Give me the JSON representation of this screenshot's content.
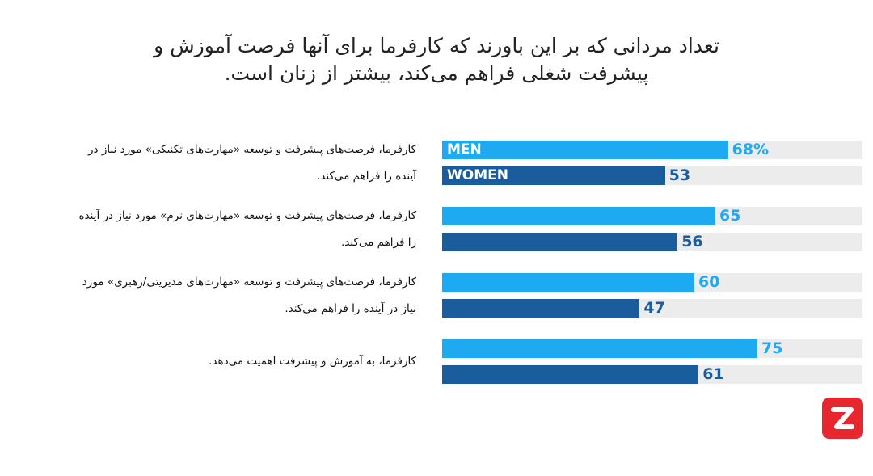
{
  "chart_data": {
    "type": "bar",
    "orientation": "horizontal",
    "title": "تعداد مردانی که بر این باورند که کارفرما برای آنها فرصت آموزش و پیشرفت شغلی فراهم می‌کند، بیشتر از زنان است.",
    "categories": [
      "کارفرما، فرصت‌های پیشرفت و توسعه «مهارت‌های تکنیکی» مورد نیاز در آینده را فراهم می‌کند.",
      "کارفرما، فرصت‌های پیشرفت و توسعه «مهارت‌های نرم» مورد نیاز در آینده را فراهم می‌کند.",
      "کارفرما، فرصت‌های پیشرفت و توسعه «مهارت‌های مدیریتی/رهبری» مورد نیاز در آینده را فراهم می‌کند.",
      "کارفرما، به آموزش و پیشرفت اهمیت می‌دهد."
    ],
    "series": [
      {
        "name": "MEN",
        "color": "#1eaaf1",
        "values": [
          68,
          65,
          60,
          75
        ],
        "value_labels": [
          "68%",
          "65",
          "60",
          "75"
        ]
      },
      {
        "name": "WOMEN",
        "color": "#1a5c9c",
        "values": [
          53,
          56,
          47,
          61
        ],
        "value_labels": [
          "53",
          "56",
          "47",
          "61"
        ]
      }
    ],
    "xlim": [
      0,
      100
    ]
  }
}
